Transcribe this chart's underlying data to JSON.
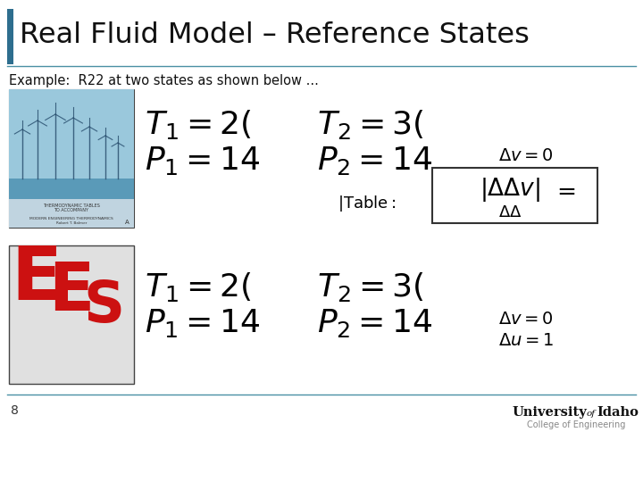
{
  "title": "Real Fluid Model – Reference States",
  "subtitle": "Example:  R22 at two states as shown below ...",
  "bg_color": "#e8e8e8",
  "slide_bg": "#ffffff",
  "title_bar_color": "#2e6e8e",
  "page_number": "8",
  "accent_color": "#4a7fa5",
  "title_line_color": "#4a90a4",
  "bottom_line_color": "#4a90a4",
  "math_top_T1": "$T_1 = 2($",
  "math_top_T2": "$T_2 = 3($",
  "math_top_P1": "$P_1 = 14$",
  "math_top_P2": "$P_2 = 14$",
  "math_dv": "$\\Delta v = 0$",
  "math_du": "$\\Delta u = 1$",
  "math_table": "$|\\mathrm{Table:}$",
  "math_ddv": "$|\\Delta\\Delta v| =$",
  "math_bot_T1": "$T_1 = 2($",
  "math_bot_T2": "$T_2 = 3($",
  "math_bot_P1": "$P_1 = 14$",
  "math_bot_P2": "$P_2 = 14$"
}
